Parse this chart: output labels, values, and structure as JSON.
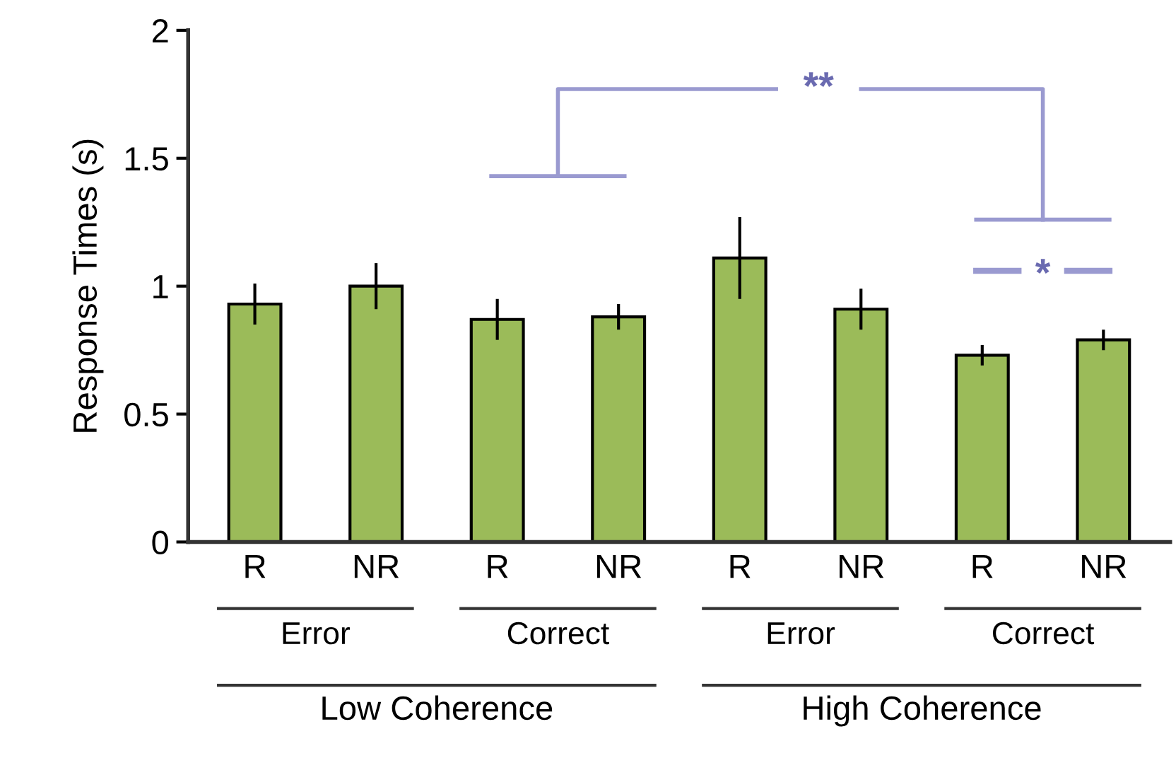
{
  "chart_data": {
    "type": "bar",
    "ylabel": "Response Times (s)",
    "categories": [
      "R",
      "NR",
      "R",
      "NR",
      "R",
      "NR",
      "R",
      "NR"
    ],
    "values": [
      0.93,
      1.0,
      0.87,
      0.88,
      1.11,
      0.91,
      0.73,
      0.79
    ],
    "errors": [
      0.08,
      0.09,
      0.08,
      0.05,
      0.16,
      0.08,
      0.04,
      0.04
    ],
    "color": "#9bbb59",
    "ylim": [
      0,
      2
    ],
    "yticks": [
      0,
      0.5,
      1,
      1.5,
      2
    ],
    "grid": false,
    "annotations": [
      "Error",
      "Correct",
      "Error",
      "Correct",
      "Low Coherence",
      "High Coherence",
      "**",
      "*"
    ]
  }
}
